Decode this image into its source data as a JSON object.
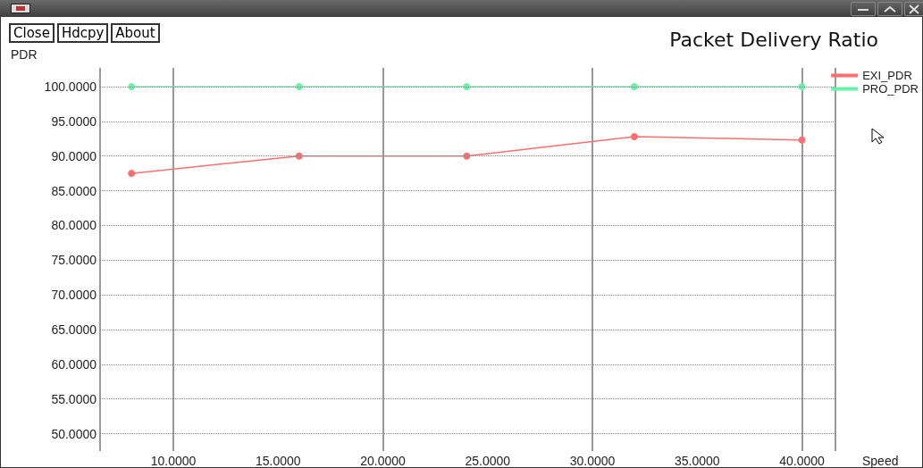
{
  "chart_data": {
    "type": "line",
    "title": "Packet Delivery Ratio",
    "xlabel": "Speed",
    "ylabel": "PDR",
    "annotations": [
      "Close",
      "Hdcpy",
      "About"
    ],
    "x": [
      8,
      16,
      24,
      32,
      40
    ],
    "series": [
      {
        "name": "EXI_PDR",
        "color": "#ff6f6f",
        "values": [
          87.5,
          90,
          90,
          92.8,
          92.3
        ]
      },
      {
        "name": "PRO_PDR",
        "color": "#66f5a8",
        "values": [
          100,
          100,
          100,
          100,
          100
        ]
      }
    ],
    "xlim": [
      6.5,
      41.6
    ],
    "ylim": [
      47.5,
      102.7
    ],
    "xticks": [
      {
        "value": 10,
        "label": "10.0000"
      },
      {
        "value": 15,
        "label": "15.0000"
      },
      {
        "value": 20,
        "label": "20.0000"
      },
      {
        "value": 25,
        "label": "25.0000"
      },
      {
        "value": 30,
        "label": "30.0000"
      },
      {
        "value": 35,
        "label": "35.0000"
      },
      {
        "value": 40,
        "label": "40.0000"
      }
    ],
    "yticks": [
      {
        "value": 50,
        "label": "50.0000"
      },
      {
        "value": 55,
        "label": "55.0000"
      },
      {
        "value": 60,
        "label": "60.0000"
      },
      {
        "value": 65,
        "label": "65.0000"
      },
      {
        "value": 70,
        "label": "70.0000"
      },
      {
        "value": 75,
        "label": "75.0000"
      },
      {
        "value": 80,
        "label": "80.0000"
      },
      {
        "value": 85,
        "label": "85.0000"
      },
      {
        "value": 90,
        "label": "90.0000"
      },
      {
        "value": 95,
        "label": "95.0000"
      },
      {
        "value": 100,
        "label": "100.0000"
      }
    ],
    "grid": true,
    "legend": "top right",
    "marker": "circle",
    "line_style": "solid"
  }
}
